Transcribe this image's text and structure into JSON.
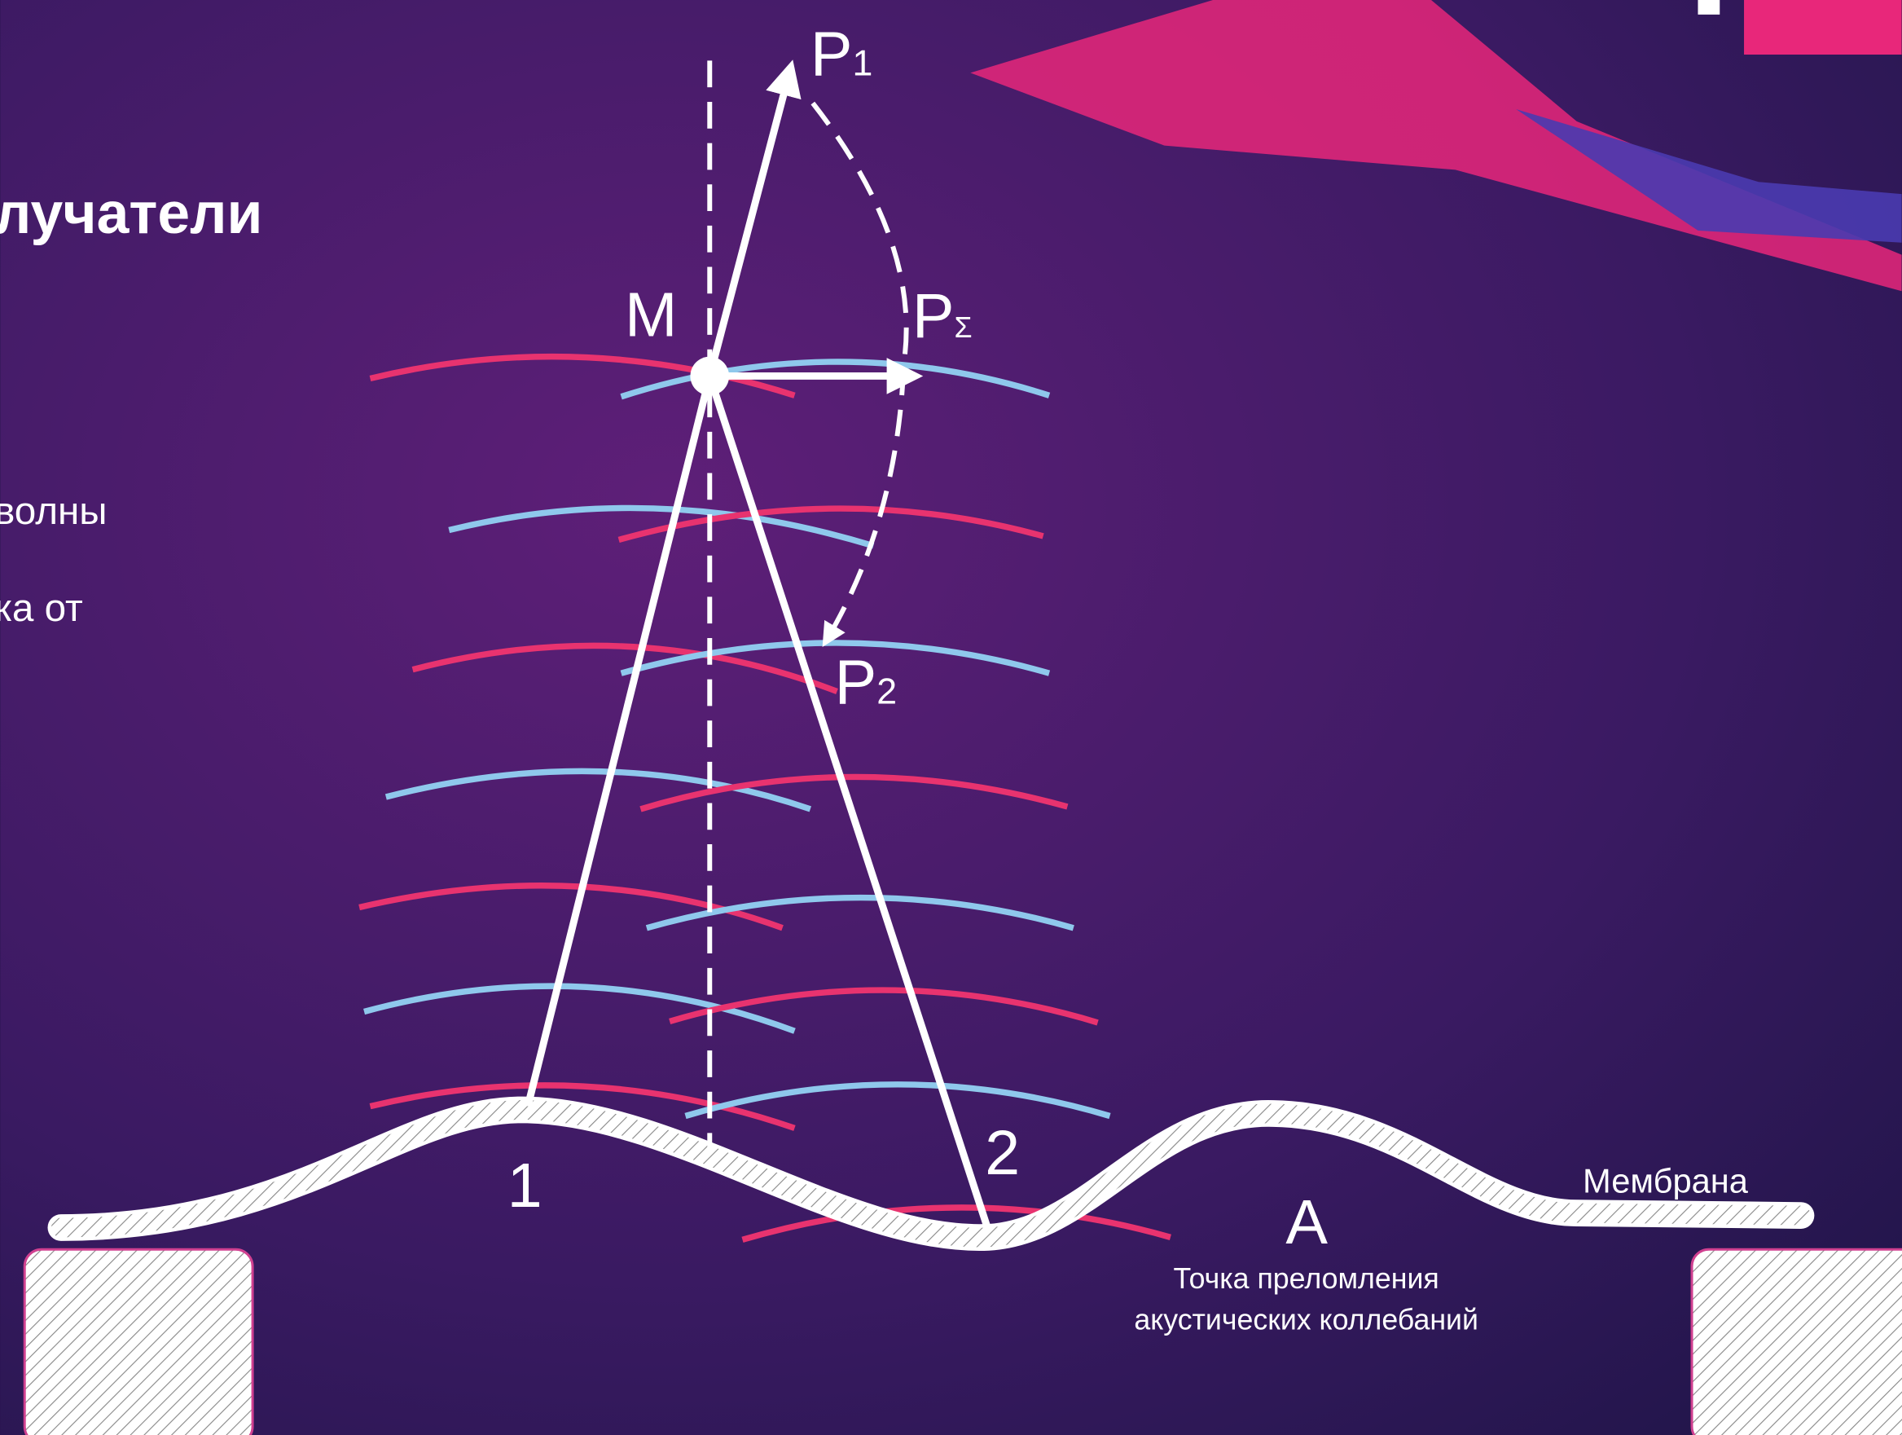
{
  "heading": "лучатели",
  "body": [
    "волны",
    "ка от"
  ],
  "labels": {
    "p1": "P",
    "p1_sub": "1",
    "m": "M",
    "psum": "P",
    "psum_sub": "Σ",
    "p2": "P",
    "p2_sub": "2",
    "point1": "1",
    "point2": "2",
    "a": "A",
    "membrane": "Мембрана"
  },
  "caption": [
    "Точка преломления",
    "акустических коллебаний"
  ]
}
